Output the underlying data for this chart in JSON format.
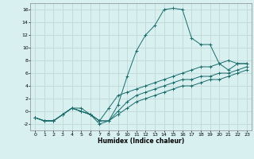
{
  "xlabel": "Humidex (Indice chaleur)",
  "background_color": "#d8f0f0",
  "grid_color": "#c0d8d8",
  "line_color": "#1a6b6b",
  "xlim": [
    -0.5,
    23.5
  ],
  "ylim": [
    -3,
    17
  ],
  "xticks": [
    0,
    1,
    2,
    3,
    4,
    5,
    6,
    7,
    8,
    9,
    10,
    11,
    12,
    13,
    14,
    15,
    16,
    17,
    18,
    19,
    20,
    21,
    22,
    23
  ],
  "yticks": [
    -2,
    0,
    2,
    4,
    6,
    8,
    10,
    12,
    14,
    16
  ],
  "series1_x": [
    0,
    1,
    2,
    3,
    4,
    5,
    6,
    7,
    8,
    9,
    10,
    11,
    12,
    13,
    14,
    15,
    16,
    17,
    18,
    19,
    20,
    21,
    22,
    23
  ],
  "series1_y": [
    -1,
    -1.5,
    -1.5,
    -0.5,
    0.5,
    0.5,
    -0.5,
    -2,
    -1.5,
    1,
    5.5,
    9.5,
    12,
    13.5,
    16,
    16.2,
    16,
    11.5,
    10.5,
    10.5,
    7.5,
    6.5,
    7.5,
    7.5
  ],
  "series2_x": [
    0,
    1,
    2,
    3,
    4,
    5,
    6,
    7,
    8,
    9,
    10,
    11,
    12,
    13,
    14,
    15,
    16,
    17,
    18,
    19,
    20,
    21,
    22,
    23
  ],
  "series2_y": [
    -1,
    -1.5,
    -1.5,
    -0.5,
    0.5,
    0,
    -0.5,
    -1.5,
    0.5,
    2.5,
    3,
    3.5,
    4,
    4.5,
    5,
    5.5,
    6,
    6.5,
    7,
    7,
    7.5,
    8,
    7.5,
    7.5
  ],
  "series3_x": [
    0,
    1,
    2,
    3,
    4,
    5,
    6,
    7,
    8,
    9,
    10,
    11,
    12,
    13,
    14,
    15,
    16,
    17,
    18,
    19,
    20,
    21,
    22,
    23
  ],
  "series3_y": [
    -1,
    -1.5,
    -1.5,
    -0.5,
    0.5,
    0,
    -0.5,
    -1.5,
    -1.5,
    0,
    1.5,
    2.5,
    3,
    3.5,
    4,
    4.5,
    5,
    5,
    5.5,
    5.5,
    6,
    6,
    6.5,
    7
  ],
  "series4_x": [
    0,
    1,
    2,
    3,
    4,
    5,
    6,
    7,
    8,
    9,
    10,
    11,
    12,
    13,
    14,
    15,
    16,
    17,
    18,
    19,
    20,
    21,
    22,
    23
  ],
  "series4_y": [
    -1,
    -1.5,
    -1.5,
    -0.5,
    0.5,
    0,
    -0.5,
    -1.5,
    -1.5,
    -0.5,
    0.5,
    1.5,
    2,
    2.5,
    3,
    3.5,
    4,
    4,
    4.5,
    5,
    5,
    5.5,
    6,
    6.5
  ]
}
